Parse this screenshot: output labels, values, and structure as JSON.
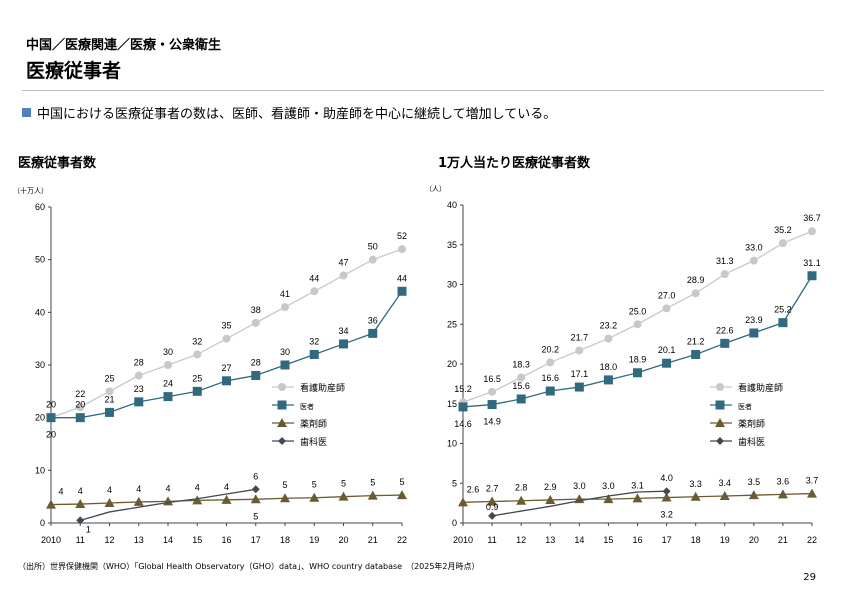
{
  "header": {
    "breadcrumb": "中国／医療関連／医療・公衆衛生",
    "title": "医療従事者"
  },
  "bullet": "中国における医療従事者の数は、医師、看護師・助産師を中心に継続して増加している。",
  "footnote": "（出所）世界保健機関（WHO）「Global Health Observatory（GHO）data」、WHO country database　（2025年2月時点）",
  "page_number": "29",
  "colors": {
    "nurse": "#c8c8c8",
    "doctor": "#31697f",
    "pharmacist": "#6b5b33",
    "dentist": "#3f4a55",
    "accent": "#4f81bd"
  },
  "chart_data": [
    {
      "type": "line",
      "title": "医療従事者数",
      "unit": "（十万人）",
      "ylim": [
        0,
        60
      ],
      "yticks": [
        0,
        10,
        20,
        30,
        40,
        50,
        60
      ],
      "categories": [
        "2010",
        "11",
        "12",
        "13",
        "14",
        "15",
        "16",
        "17",
        "18",
        "19",
        "20",
        "21",
        "22"
      ],
      "series": [
        {
          "name": "看護助産師",
          "marker": "circle",
          "values": [
            20,
            22,
            25,
            28,
            30,
            32,
            35,
            38,
            41,
            44,
            47,
            50,
            52
          ],
          "labels": [
            "20",
            "22",
            "25",
            "28",
            "30",
            "32",
            "35",
            "38",
            "41",
            "44",
            "47",
            "50",
            "52"
          ]
        },
        {
          "name": "医者",
          "marker": "square",
          "values": [
            20,
            20,
            21,
            23,
            24,
            25,
            27,
            28,
            30,
            32,
            34,
            36,
            44
          ],
          "labels": [
            "20",
            "20",
            "21",
            "23",
            "24",
            "25",
            "27",
            "28",
            "30",
            "32",
            "34",
            "36",
            "44"
          ]
        },
        {
          "name": "薬剤師",
          "marker": "triangle",
          "values": [
            3.5,
            3.6,
            3.8,
            4.0,
            4.1,
            4.3,
            4.4,
            4.5,
            4.7,
            4.8,
            5.0,
            5.2,
            5.3
          ],
          "labels": [
            "4",
            "4",
            "4",
            "4",
            "4",
            "4",
            "4",
            "5",
            "5",
            "5",
            "5",
            "5",
            "5"
          ]
        },
        {
          "name": "歯科医",
          "marker": "diamond",
          "values": [
            null,
            0.5,
            2.1,
            3.0,
            3.9,
            4.6,
            5.5,
            6.4,
            null,
            null,
            null,
            null,
            null
          ],
          "labels": [
            null,
            "1",
            null,
            null,
            null,
            null,
            null,
            "6",
            null,
            null,
            null,
            null,
            null
          ]
        }
      ],
      "legend": "right-middle"
    },
    {
      "type": "line",
      "title": "1万人当たり医療従事者数",
      "unit": "（人）",
      "ylim": [
        0,
        40
      ],
      "yticks": [
        0,
        5,
        10,
        15,
        20,
        25,
        30,
        35,
        40
      ],
      "categories": [
        "2010",
        "11",
        "12",
        "13",
        "14",
        "15",
        "16",
        "17",
        "18",
        "19",
        "20",
        "21",
        "22"
      ],
      "series": [
        {
          "name": "看護助産師",
          "marker": "circle",
          "values": [
            15.2,
            16.5,
            18.3,
            20.2,
            21.7,
            23.2,
            25.0,
            27.0,
            28.9,
            31.3,
            33.0,
            35.2,
            36.7
          ],
          "labels": [
            "15.2",
            "16.5",
            "18.3",
            "20.2",
            "21.7",
            "23.2",
            "25.0",
            "27.0",
            "28.9",
            "31.3",
            "33.0",
            "35.2",
            "36.7"
          ]
        },
        {
          "name": "医者",
          "marker": "square",
          "values": [
            14.6,
            14.9,
            15.6,
            16.6,
            17.1,
            18.0,
            18.9,
            20.1,
            21.2,
            22.6,
            23.9,
            25.2,
            31.1
          ],
          "labels": [
            "14.6",
            "14.9",
            "15.6",
            "16.6",
            "17.1",
            "18.0",
            "18.9",
            "20.1",
            "21.2",
            "22.6",
            "23.9",
            "25.2",
            "31.1"
          ]
        },
        {
          "name": "薬剤師",
          "marker": "triangle",
          "values": [
            2.6,
            2.7,
            2.8,
            2.9,
            3.0,
            3.0,
            3.1,
            3.2,
            3.3,
            3.4,
            3.5,
            3.6,
            3.7
          ],
          "labels": [
            "2.6",
            "2.7",
            "2.8",
            "2.9",
            "3.0",
            "3.0",
            "3.1",
            "3.2",
            "3.3",
            "3.4",
            "3.5",
            "3.6",
            "3.7"
          ]
        },
        {
          "name": "歯科医",
          "marker": "diamond",
          "values": [
            null,
            0.9,
            1.5,
            2.1,
            2.8,
            3.4,
            3.9,
            4.0,
            null,
            null,
            null,
            null,
            null
          ],
          "labels": [
            null,
            "0.9",
            null,
            null,
            null,
            null,
            null,
            "4.0",
            null,
            null,
            null,
            null,
            null
          ]
        }
      ],
      "legend": "right-middle"
    }
  ]
}
